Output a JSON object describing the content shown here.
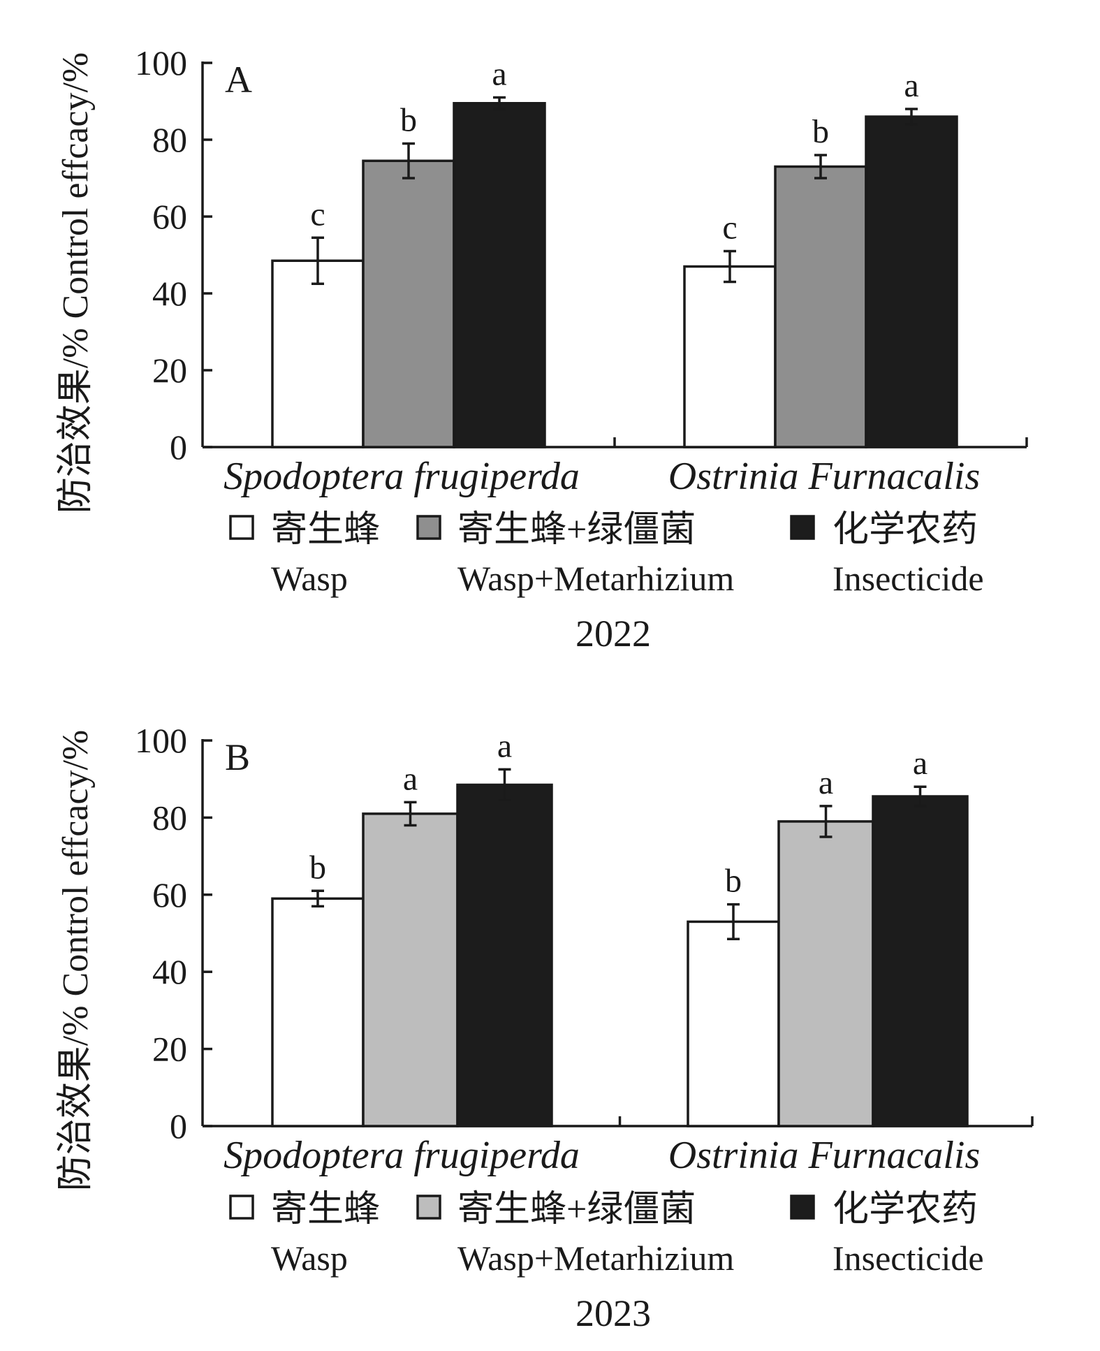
{
  "chart_data": [
    {
      "type": "bar",
      "panel_label": "A",
      "ylabel": "防治效果/% Control effcacy/%",
      "ylim": [
        0,
        100
      ],
      "yticks": [
        "0",
        "20",
        "40",
        "60",
        "80",
        "100"
      ],
      "categories": [
        "Spodoptera frugiperda",
        "Ostrinia Furnacalis"
      ],
      "series": [
        {
          "name": "寄生蜂 Wasp",
          "color": "#ffffff",
          "values": [
            48.5,
            47
          ],
          "errors": [
            6,
            4
          ],
          "letters": [
            "c",
            "c"
          ]
        },
        {
          "name": "寄生蜂+绿僵菌 Wasp+Metarhizium",
          "color": "#8f8f8f",
          "values": [
            74.5,
            73
          ],
          "errors": [
            4.5,
            3
          ],
          "letters": [
            "b",
            "b"
          ]
        },
        {
          "name": "化学农药 Insecticide",
          "color": "#1c1c1c",
          "values": [
            89.5,
            86
          ],
          "errors": [
            1.5,
            2
          ],
          "letters": [
            "a",
            "a"
          ]
        }
      ],
      "legend": [
        {
          "cn": "寄生蜂",
          "en": "Wasp"
        },
        {
          "cn": "寄生蜂+绿僵菌",
          "en": "Wasp+Metarhizium"
        },
        {
          "cn": "化学农药",
          "en": "Insecticide"
        }
      ],
      "caption": "2022"
    },
    {
      "type": "bar",
      "panel_label": "B",
      "ylabel": "防治效果/% Control effcacy/%",
      "ylim": [
        0,
        100
      ],
      "yticks": [
        "0",
        "20",
        "40",
        "60",
        "80",
        "100"
      ],
      "categories": [
        "Spodoptera frugiperda",
        "Ostrinia Furnacalis"
      ],
      "series": [
        {
          "name": "寄生蜂 Wasp",
          "color": "#ffffff",
          "values": [
            59,
            53
          ],
          "errors": [
            2,
            4.5
          ],
          "letters": [
            "b",
            "b"
          ]
        },
        {
          "name": "寄生蜂+绿僵菌 Wasp+Metarhizium",
          "color": "#bdbdbd",
          "values": [
            81,
            79
          ],
          "errors": [
            3,
            4
          ],
          "letters": [
            "a",
            "a"
          ]
        },
        {
          "name": "化学农药 Insecticide",
          "color": "#1c1c1c",
          "values": [
            88.5,
            85.5
          ],
          "errors": [
            4,
            2.5
          ],
          "letters": [
            "a",
            "a"
          ]
        }
      ],
      "legend": [
        {
          "cn": "寄生蜂",
          "en": "Wasp"
        },
        {
          "cn": "寄生蜂+绿僵菌",
          "en": "Wasp+Metarhizium"
        },
        {
          "cn": "化学农药",
          "en": "Insecticide"
        }
      ],
      "caption": "2023"
    }
  ]
}
